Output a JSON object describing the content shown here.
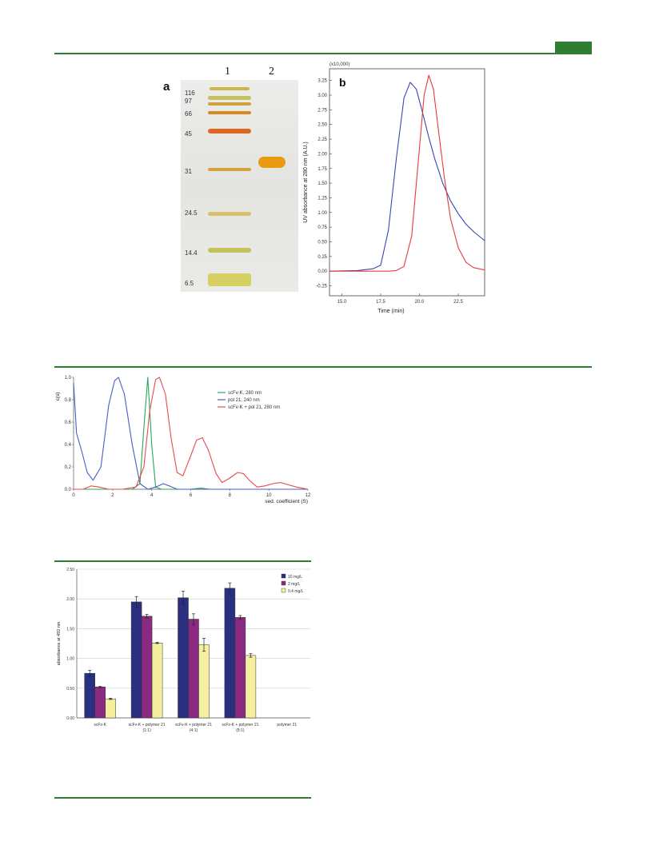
{
  "figure_a": {
    "panel_label": "a",
    "lane_labels": [
      "1",
      "2"
    ],
    "marker_labels": [
      "116",
      "97",
      "66",
      "45",
      "31",
      "24.5",
      "14.4",
      "6.5"
    ]
  },
  "chart_data": [
    {
      "type": "line",
      "panel_label": "b",
      "xlabel": "Time (min)",
      "ylabel": "UV absorbance at 280 nm (A.U.)",
      "y_multiplier": "(x10,000)",
      "xlim": [
        14.2,
        24.2
      ],
      "ylim": [
        -0.42,
        3.45
      ],
      "xticks": [
        15.0,
        17.5,
        20.0,
        22.5
      ],
      "yticks": [
        -0.25,
        0.0,
        0.25,
        0.5,
        0.75,
        1.0,
        1.25,
        1.5,
        1.75,
        2.0,
        2.25,
        2.5,
        2.75,
        3.0,
        3.25
      ],
      "series": [
        {
          "color": "#3846b0",
          "x": [
            14.2,
            16.0,
            17.0,
            17.5,
            18.0,
            18.5,
            19.0,
            19.4,
            19.8,
            20.2,
            20.6,
            21.0,
            21.5,
            22.0,
            22.5,
            23.0,
            23.5,
            24.2
          ],
          "y": [
            0,
            0.01,
            0.04,
            0.1,
            0.7,
            1.9,
            2.95,
            3.22,
            3.1,
            2.7,
            2.28,
            1.9,
            1.5,
            1.2,
            0.98,
            0.8,
            0.67,
            0.52
          ]
        },
        {
          "color": "#e83a3a",
          "x": [
            14.2,
            17.0,
            18.0,
            18.5,
            19.0,
            19.5,
            20.0,
            20.3,
            20.6,
            20.9,
            21.2,
            21.6,
            22.0,
            22.5,
            23.0,
            23.5,
            24.2
          ],
          "y": [
            0,
            0,
            0,
            0.01,
            0.08,
            0.6,
            2.1,
            3.0,
            3.34,
            3.1,
            2.45,
            1.6,
            0.9,
            0.4,
            0.15,
            0.06,
            0.02
          ]
        }
      ]
    },
    {
      "type": "line",
      "xlabel": "sed. coefficient (S)",
      "ylabel": "c(s)",
      "xlim": [
        0,
        12
      ],
      "ylim": [
        0,
        1.0
      ],
      "xticks": [
        0,
        2,
        4,
        6,
        8,
        10,
        12
      ],
      "yticks": [
        0,
        0.2,
        0.4,
        0.6,
        0.8,
        1.0
      ],
      "series": [
        {
          "name": "scFv-K, 280 nm",
          "color": "#27a85a",
          "x": [
            0,
            0.2,
            0.5,
            0.8,
            1.5,
            2.5,
            3.0,
            3.4,
            3.6,
            3.8,
            4.0,
            4.2,
            4.5,
            5.0,
            6.0,
            6.5,
            7.0,
            8.0,
            10.0,
            12.0
          ],
          "y": [
            0,
            0,
            0,
            0,
            0,
            0,
            0,
            0.05,
            0.55,
            1.0,
            0.4,
            0.02,
            0,
            0,
            0,
            0.01,
            0,
            0,
            0,
            0
          ]
        },
        {
          "name": "pol 21, 240 nm",
          "color": "#4a5dc4",
          "x": [
            0,
            0.15,
            0.4,
            0.7,
            1.0,
            1.4,
            1.8,
            2.1,
            2.3,
            2.6,
            3.0,
            3.4,
            3.8,
            4.2,
            4.6,
            4.9,
            5.3,
            5.8,
            6.5,
            8.0,
            10.0,
            12.0
          ],
          "y": [
            0.95,
            0.5,
            0.35,
            0.15,
            0.08,
            0.2,
            0.75,
            0.97,
            1.0,
            0.85,
            0.4,
            0.05,
            0,
            0.02,
            0.05,
            0.03,
            0,
            0,
            0,
            0,
            0,
            0
          ]
        },
        {
          "name": "scFv-K + pol 21, 280 nm",
          "color": "#e84a4a",
          "x": [
            0,
            0.5,
            0.9,
            1.3,
            1.8,
            2.5,
            3.2,
            3.6,
            3.9,
            4.2,
            4.4,
            4.7,
            5.0,
            5.3,
            5.6,
            6.0,
            6.3,
            6.6,
            6.9,
            7.3,
            7.6,
            8.0,
            8.4,
            8.7,
            9.0,
            9.4,
            9.8,
            10.2,
            10.6,
            11.0,
            11.4,
            12.0
          ],
          "y": [
            0,
            0,
            0.03,
            0.02,
            0,
            0,
            0.02,
            0.2,
            0.7,
            0.98,
            1.0,
            0.85,
            0.45,
            0.15,
            0.12,
            0.3,
            0.44,
            0.46,
            0.35,
            0.14,
            0.06,
            0.1,
            0.15,
            0.14,
            0.08,
            0.02,
            0.03,
            0.05,
            0.06,
            0.04,
            0.02,
            0
          ]
        }
      ]
    },
    {
      "type": "bar",
      "ylabel": "absorbance at 492 nm",
      "ylim": [
        0,
        2.5
      ],
      "yticks": [
        0,
        0.5,
        1.0,
        1.5,
        2.0,
        2.5
      ],
      "categories": [
        "scFv-K",
        "scFv-K + polymer 21\n(1:1)",
        "scFv-K + polymer 21\n(4:1)",
        "scFv-K + polymer 21\n(8:1)",
        "polymer 21"
      ],
      "series": [
        {
          "name": "10 mg/L",
          "color": "#2a2f80",
          "values": [
            0.75,
            1.95,
            2.02,
            2.18,
            0
          ],
          "errors": [
            0.05,
            0.09,
            0.11,
            0.09,
            0
          ]
        },
        {
          "name": "2 mg/L",
          "color": "#8a2a80",
          "values": [
            0.52,
            1.71,
            1.66,
            1.69,
            0
          ],
          "errors": [
            0.01,
            0.03,
            0.09,
            0.03,
            0
          ]
        },
        {
          "name": "0.4 mg/L",
          "color": "#f4f0a0",
          "values": [
            0.32,
            1.26,
            1.23,
            1.05,
            0
          ],
          "errors": [
            0.01,
            0.01,
            0.11,
            0.03,
            0
          ]
        }
      ]
    }
  ]
}
